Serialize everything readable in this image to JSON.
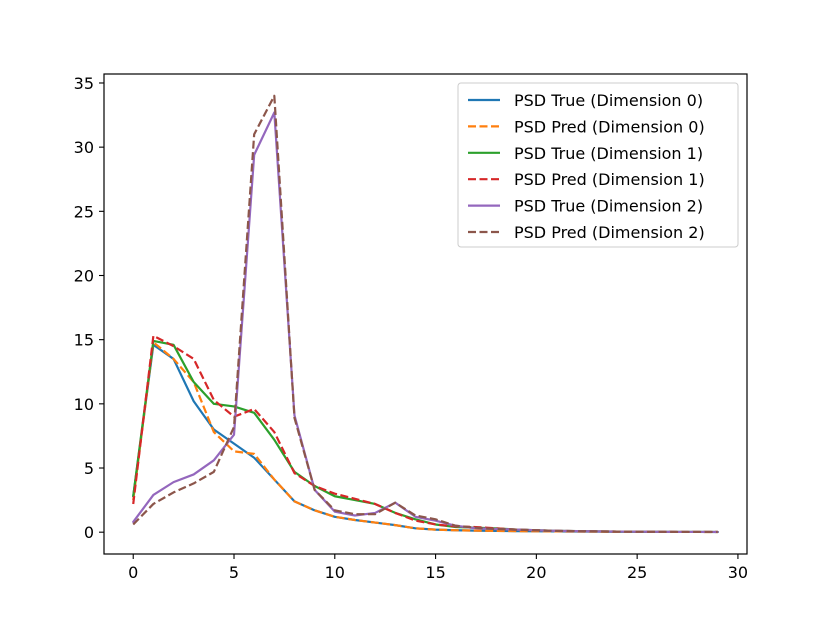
{
  "chart_data": {
    "type": "line",
    "title": "",
    "xlabel": "",
    "ylabel": "",
    "xlim": [
      -1.45,
      30.45
    ],
    "ylim": [
      -1.7,
      35.7
    ],
    "xticks": [
      0,
      5,
      10,
      15,
      20,
      25,
      30
    ],
    "yticks": [
      0,
      5,
      10,
      15,
      20,
      25,
      30,
      35
    ],
    "grid": false,
    "legend_position": "top-right",
    "x": [
      0,
      1,
      2,
      3,
      4,
      5,
      6,
      7,
      8,
      9,
      10,
      11,
      12,
      13,
      14,
      15,
      16,
      17,
      18,
      19,
      20,
      21,
      22,
      23,
      24,
      25,
      26,
      27,
      28,
      29
    ],
    "series": [
      {
        "name": "PSD True (Dimension 0)",
        "color": "#1f77b4",
        "dash": "solid",
        "values": [
          2.8,
          14.6,
          13.5,
          10.2,
          8.0,
          6.9,
          5.8,
          4.1,
          2.4,
          1.7,
          1.2,
          0.95,
          0.75,
          0.55,
          0.3,
          0.2,
          0.15,
          0.12,
          0.1,
          0.08,
          0.07,
          0.06,
          0.05,
          0.04,
          0.03,
          0.03,
          0.02,
          0.02,
          0.02,
          0.01
        ]
      },
      {
        "name": "PSD Pred (Dimension 0)",
        "color": "#ff7f0e",
        "dash": "dashed",
        "values": [
          2.5,
          14.8,
          13.5,
          11.7,
          7.8,
          6.3,
          6.1,
          4.1,
          2.4,
          1.7,
          1.2,
          0.95,
          0.75,
          0.55,
          0.3,
          0.2,
          0.15,
          0.12,
          0.1,
          0.08,
          0.07,
          0.06,
          0.05,
          0.04,
          0.03,
          0.03,
          0.02,
          0.02,
          0.02,
          0.01
        ]
      },
      {
        "name": "PSD True (Dimension 1)",
        "color": "#2ca02c",
        "dash": "solid",
        "values": [
          2.8,
          14.9,
          14.6,
          11.7,
          10.0,
          9.8,
          9.3,
          7.2,
          4.7,
          3.6,
          2.8,
          2.5,
          2.2,
          1.5,
          1.0,
          0.6,
          0.4,
          0.35,
          0.3,
          0.2,
          0.15,
          0.1,
          0.08,
          0.06,
          0.05,
          0.04,
          0.03,
          0.02,
          0.02,
          0.02
        ]
      },
      {
        "name": "PSD Pred (Dimension 1)",
        "color": "#d62728",
        "dash": "dashed",
        "values": [
          2.2,
          15.3,
          14.5,
          13.5,
          10.3,
          9.0,
          9.6,
          7.8,
          4.6,
          3.6,
          3.0,
          2.6,
          2.2,
          1.5,
          0.9,
          0.6,
          0.45,
          0.4,
          0.3,
          0.2,
          0.15,
          0.1,
          0.08,
          0.06,
          0.05,
          0.04,
          0.03,
          0.02,
          0.02,
          0.02
        ]
      },
      {
        "name": "PSD True (Dimension 2)",
        "color": "#9467bd",
        "dash": "solid",
        "values": [
          0.8,
          2.9,
          3.9,
          4.5,
          5.6,
          7.6,
          29.4,
          32.7,
          9.1,
          3.3,
          1.6,
          1.3,
          1.5,
          2.3,
          1.2,
          0.9,
          0.5,
          0.3,
          0.25,
          0.2,
          0.15,
          0.1,
          0.08,
          0.06,
          0.05,
          0.04,
          0.03,
          0.02,
          0.02,
          0.02
        ]
      },
      {
        "name": "PSD Pred (Dimension 2)",
        "color": "#8c564b",
        "dash": "dashed",
        "values": [
          0.6,
          2.2,
          3.1,
          3.8,
          4.7,
          8.2,
          31.0,
          34.0,
          8.9,
          3.3,
          1.7,
          1.4,
          1.4,
          2.3,
          1.3,
          1.0,
          0.5,
          0.35,
          0.25,
          0.2,
          0.15,
          0.1,
          0.08,
          0.06,
          0.05,
          0.04,
          0.03,
          0.02,
          0.02,
          0.02
        ]
      }
    ]
  }
}
